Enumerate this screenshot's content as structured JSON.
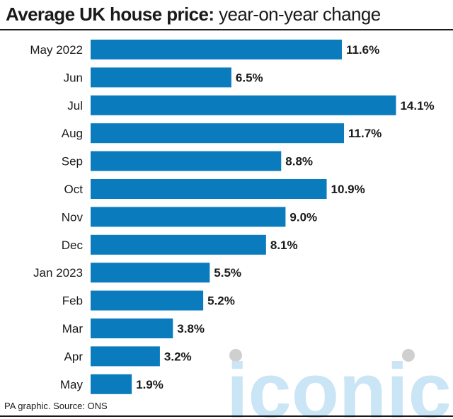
{
  "header": {
    "title_bold": "Average UK house price:",
    "title_light": "year-on-year change"
  },
  "footer": {
    "source": "PA graphic. Source: ONS"
  },
  "watermark": {
    "text": "iconic"
  },
  "colors": {
    "bar": "#0a7bbd",
    "text": "#1a1a1a",
    "watermark": "#c5e3f4",
    "watermark_dot": "#cfcfcf"
  },
  "chart_data": {
    "type": "bar",
    "orientation": "horizontal",
    "categories": [
      "May 2022",
      "Jun",
      "Jul",
      "Aug",
      "Sep",
      "Oct",
      "Nov",
      "Dec",
      "Jan 2023",
      "Feb",
      "Mar",
      "Apr",
      "May"
    ],
    "values": [
      11.6,
      6.5,
      14.1,
      11.7,
      8.8,
      10.9,
      9.0,
      8.1,
      5.5,
      5.2,
      3.8,
      3.2,
      1.9
    ],
    "value_labels": [
      "11.6%",
      "6.5%",
      "14.1%",
      "11.7%",
      "8.8%",
      "10.9%",
      "9.0%",
      "8.1%",
      "5.5%",
      "5.2%",
      "3.8%",
      "3.2%",
      "1.9%"
    ],
    "title": "Average UK house price: year-on-year change",
    "unit": "%",
    "grid": false
  }
}
